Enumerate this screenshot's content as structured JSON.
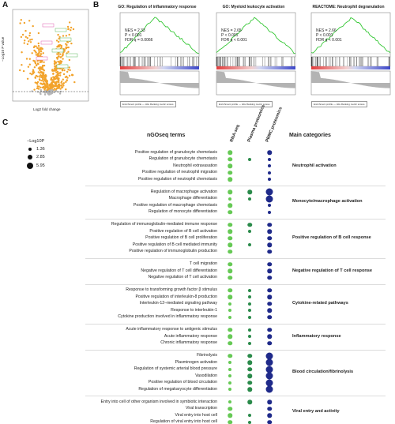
{
  "panels": {
    "a": "A",
    "b": "B",
    "c": "C"
  },
  "volcano": {
    "ylabel": "−Log10 P value",
    "xlabel": "Log2 fold change",
    "xticks": [
      "-10",
      "-5",
      "0",
      "5",
      "10"
    ],
    "yticks": [
      "0",
      "5",
      "10",
      "15",
      "20",
      "25"
    ]
  },
  "gsea": [
    {
      "title": "GO: Regulation of inflammatory response",
      "nes": "NES = 2.33",
      "p": "P < 0.001",
      "fdr": "FDR q = 0.0066"
    },
    {
      "title": "GO: Myeloid leukocyte activation",
      "nes": "NES = 2.65",
      "p": "P < 0.001",
      "fdr": "FDR q < 0.001"
    },
    {
      "title": "REACTOME: Neutrophil degranulation",
      "nes": "NES = 2.66",
      "p": "P < 0.001",
      "fdr": "FDR q < 0.001"
    }
  ],
  "gsea_legend": {
    "a": "Enrichment profile — Hits",
    "b": "Ranking metric scores"
  },
  "size_legend": {
    "title": "−Log10P",
    "values": [
      "1.36",
      "2.85",
      "5.95"
    ]
  },
  "section_c": {
    "terms_header": "nGOseq terms",
    "categories_header": "Main categories",
    "columns": [
      "RNA-seq",
      "Plasma proteomics",
      "PBMC proteomics"
    ],
    "colors": {
      "rna": "#66c955",
      "plasma": "#2a8a4a",
      "pbmc": "#1f2a8a"
    }
  },
  "groups": [
    {
      "category": "Neutrophil activation",
      "terms": [
        {
          "name": "Positive regulation of granulocyte chemotaxis",
          "dots": [
            2,
            0,
            2
          ]
        },
        {
          "name": "Regulation of granulocyte chemotaxis",
          "dots": [
            2,
            1,
            1
          ]
        },
        {
          "name": "Neutrophil extravasation",
          "dots": [
            2,
            0,
            1
          ]
        },
        {
          "name": "Positive regulation of neutrophil migration",
          "dots": [
            2,
            0,
            1
          ]
        },
        {
          "name": "Positive regulation of neutrophil chemotaxis",
          "dots": [
            2,
            0,
            1
          ]
        }
      ]
    },
    {
      "category": "Monocyte/macrophage activation",
      "terms": [
        {
          "name": "Regulation of macrophage activation",
          "dots": [
            2,
            2,
            3
          ]
        },
        {
          "name": "Macrophage differentiation",
          "dots": [
            1,
            1,
            3
          ]
        },
        {
          "name": "Positive regulation of macrophage chemotaxis",
          "dots": [
            2,
            0,
            1
          ]
        },
        {
          "name": "Regulation of monocyte differentiation",
          "dots": [
            2,
            0,
            1
          ]
        }
      ]
    },
    {
      "category": "Positive regulation of B cell response",
      "terms": [
        {
          "name": "Regulation of immunoglobulin-mediated immune response",
          "dots": [
            2,
            2,
            2
          ]
        },
        {
          "name": "Positive regulation of B cell activation",
          "dots": [
            2,
            1,
            2
          ]
        },
        {
          "name": "Positive regulation of B cell proliferation",
          "dots": [
            2,
            0,
            2
          ]
        },
        {
          "name": "Positive regulation of B cell mediated immunity",
          "dots": [
            2,
            1,
            2
          ]
        },
        {
          "name": "Positive regulation of immunoglobulin production",
          "dots": [
            2,
            0,
            2
          ]
        }
      ]
    },
    {
      "category": "Negative regulation of T cell response",
      "terms": [
        {
          "name": "T cell migration",
          "dots": [
            2,
            0,
            2
          ]
        },
        {
          "name": "Negative regulation of T cell differentiation",
          "dots": [
            2,
            0,
            2
          ]
        },
        {
          "name": "Negative regulation of T cell activation",
          "dots": [
            2,
            0,
            2
          ]
        }
      ]
    },
    {
      "category": "Cytokine-related pathways",
      "terms": [
        {
          "name": "Response to transforming growth factor β stimulus",
          "dots": [
            2,
            1,
            2
          ]
        },
        {
          "name": "Positive regulation of interleukin-8 production",
          "dots": [
            2,
            1,
            2
          ]
        },
        {
          "name": "Interleukin-12–mediated signaling pathway",
          "dots": [
            1,
            1,
            2
          ]
        },
        {
          "name": "Response to interleukin-1",
          "dots": [
            1,
            1,
            2
          ]
        },
        {
          "name": "Cytokine production involved in inflammatory response",
          "dots": [
            1,
            1,
            2
          ]
        }
      ]
    },
    {
      "category": "Inflammatory response",
      "terms": [
        {
          "name": "Acute inflammatory response to antigenic stimulus",
          "dots": [
            2,
            1,
            2
          ]
        },
        {
          "name": "Acute inflammatory response",
          "dots": [
            2,
            1,
            2
          ]
        },
        {
          "name": "Chronic inflammatory response",
          "dots": [
            2,
            1,
            2
          ]
        }
      ]
    },
    {
      "category": "Blood circulation/fibrinolysis",
      "terms": [
        {
          "name": "Fibrinolysis",
          "dots": [
            2,
            2,
            3
          ]
        },
        {
          "name": "Plasminogen activation",
          "dots": [
            1,
            2,
            3
          ]
        },
        {
          "name": "Regulation of systemic arterial blood pressure",
          "dots": [
            1,
            2,
            3
          ]
        },
        {
          "name": "Vasodilation",
          "dots": [
            1,
            2,
            3
          ]
        },
        {
          "name": "Positive regulation of blood circulation",
          "dots": [
            1,
            2,
            3
          ]
        },
        {
          "name": "Regulation of megakaryocyte differentiation",
          "dots": [
            1,
            2,
            3
          ]
        }
      ]
    },
    {
      "category": "Viral entry and activity",
      "terms": [
        {
          "name": "Entry into cell of other organism involved in symbiotic interaction",
          "dots": [
            1,
            2,
            2
          ]
        },
        {
          "name": "Viral transcription",
          "dots": [
            2,
            0,
            2
          ]
        },
        {
          "name": "Viral entry into host cell",
          "dots": [
            2,
            1,
            2
          ]
        },
        {
          "name": "Regulation of viral entry into host cell",
          "dots": [
            2,
            1,
            2
          ]
        }
      ]
    }
  ]
}
